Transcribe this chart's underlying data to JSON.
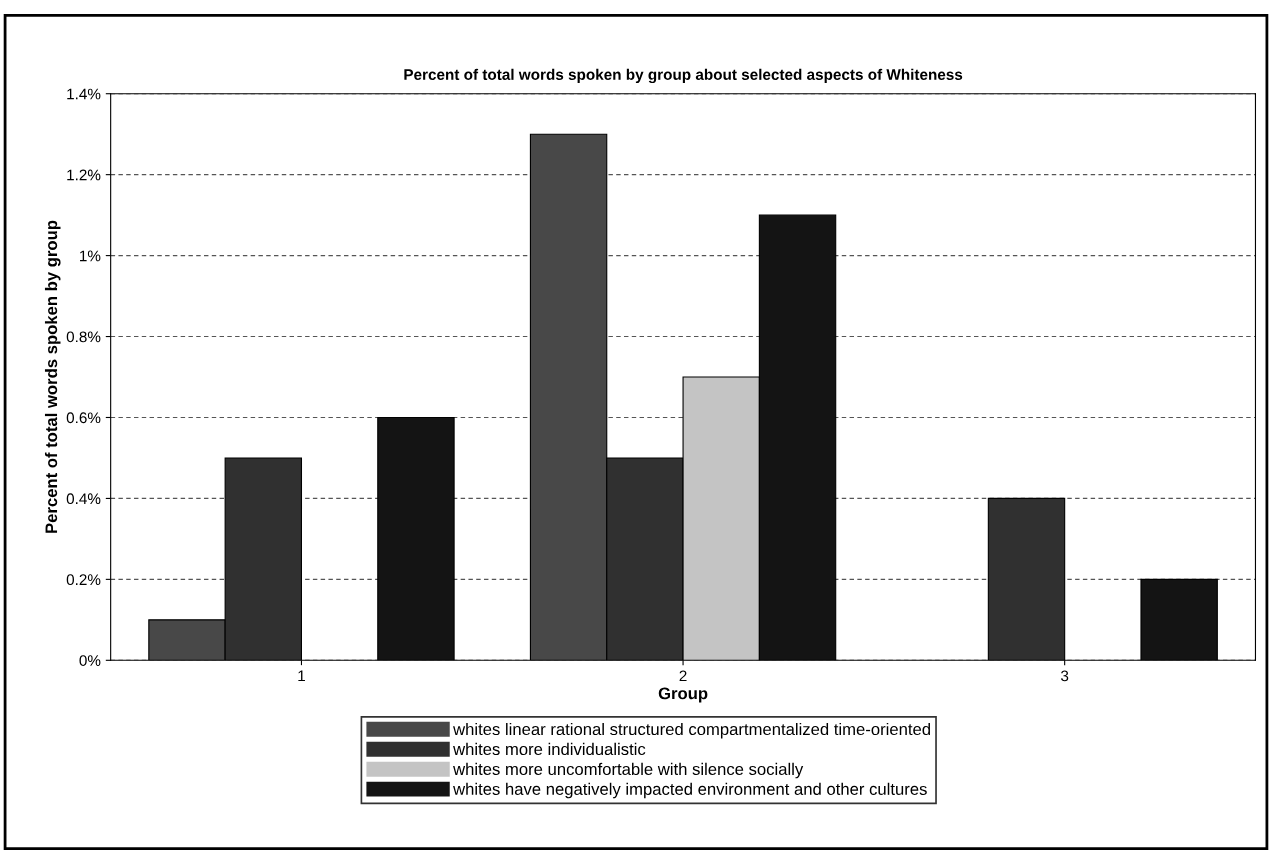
{
  "chart_data": {
    "type": "bar",
    "title": "Percent of total words spoken by group about selected aspects of Whiteness",
    "xlabel": "Group",
    "ylabel": "Percent of total words spoken by group",
    "categories": [
      "1",
      "2",
      "3"
    ],
    "series": [
      {
        "name": "whites linear rational structured compartmentalized time-oriented",
        "color": "#484848",
        "values": [
          0.1,
          1.3,
          null
        ]
      },
      {
        "name": "whites more individualistic",
        "color": "#303030",
        "values": [
          0.5,
          0.5,
          0.4
        ]
      },
      {
        "name": "whites more uncomfortable with silence socially",
        "color": "#c4c4c4",
        "values": [
          null,
          0.7,
          null
        ]
      },
      {
        "name": "whites have negatively impacted environment and other cultures",
        "color": "#141414",
        "values": [
          0.6,
          1.1,
          0.2
        ]
      }
    ],
    "ylim": [
      0,
      1.4
    ],
    "yticks": [
      {
        "value": 0,
        "label": "0%"
      },
      {
        "value": 0.2,
        "label": "0.2%"
      },
      {
        "value": 0.4,
        "label": "0.4%"
      },
      {
        "value": 0.6,
        "label": "0.6%"
      },
      {
        "value": 0.8,
        "label": "0.8%"
      },
      {
        "value": 1,
        "label": "1%"
      },
      {
        "value": 1.2,
        "label": "1.2%"
      },
      {
        "value": 1.4,
        "label": "1.4%"
      }
    ],
    "grid": "y",
    "legend": "bottom"
  }
}
